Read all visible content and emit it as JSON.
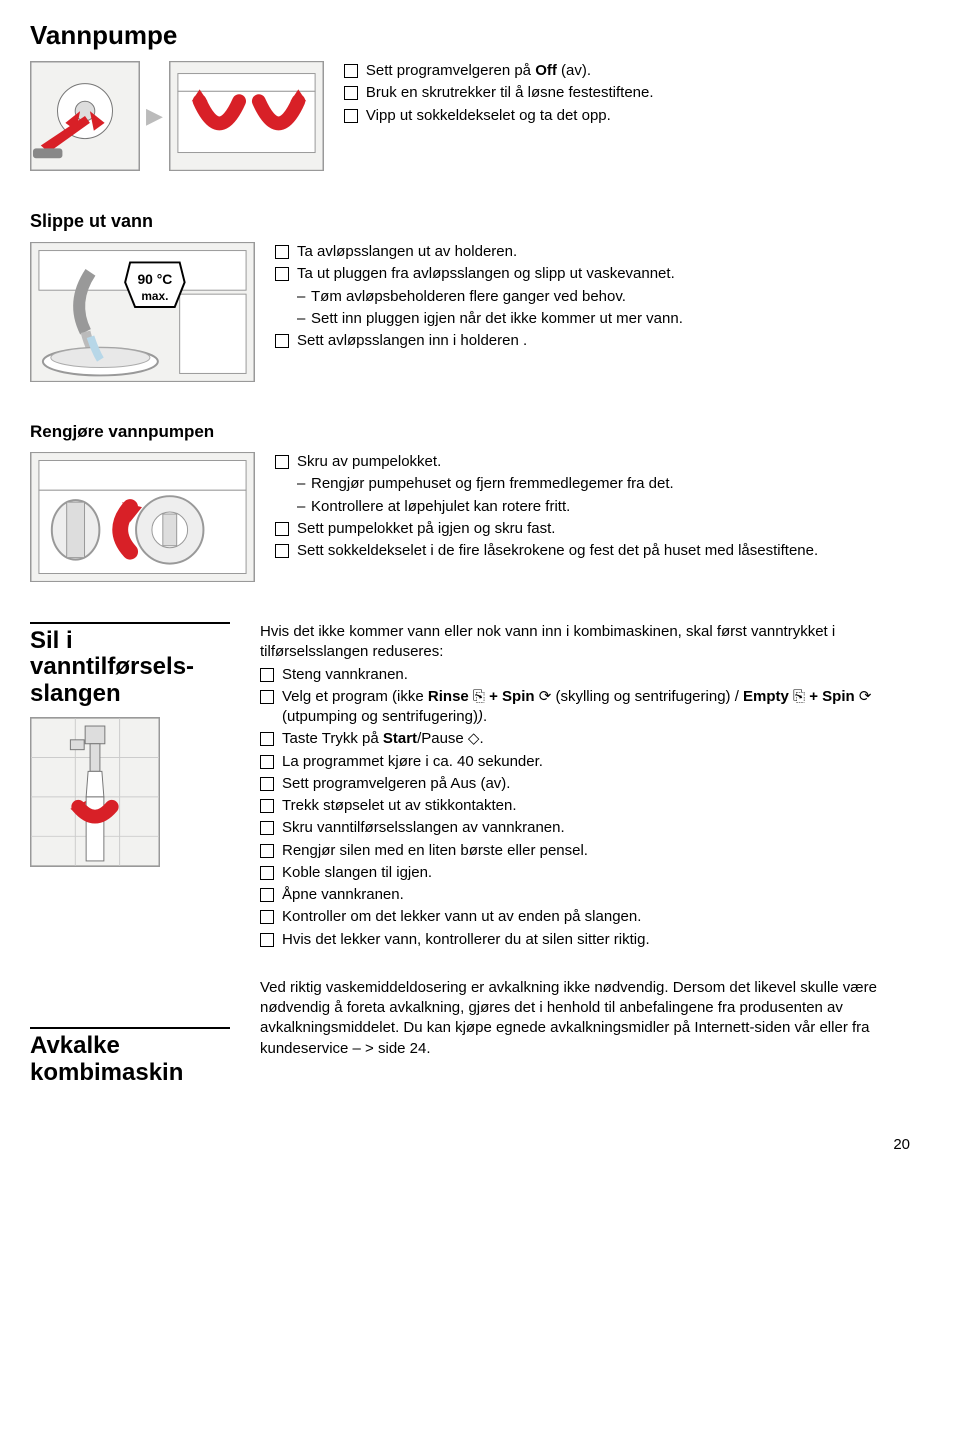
{
  "title": "Vannpumpe",
  "section1": {
    "items": [
      "Sett programvelgeren på <b>Off</b> (av).",
      "Bruk en skrutrekker til å løsne festestiftene.",
      "Vipp ut sokkeldekselet og ta det opp."
    ]
  },
  "section2": {
    "heading": "Slippe ut vann",
    "items_a": [
      "Ta avløpsslangen ut av holderen."
    ],
    "items_b": [
      "Ta ut pluggen fra avløpsslangen og slipp ut vaskevannet."
    ],
    "sub_b": [
      "Tøm avløpsbeholderen flere ganger ved behov.",
      "Sett inn pluggen igjen når det ikke kommer ut mer vann."
    ],
    "items_c": [
      "Sett avløpsslangen inn i holderen ."
    ]
  },
  "section3": {
    "heading": "Rengjøre vannpumpen",
    "items_a": [
      "Skru av pumpelokket."
    ],
    "sub_a": [
      "Rengjør pumpehuset og fjern fremmedlegemer fra det.",
      "Kontrollere at løpehjulet kan rotere fritt."
    ],
    "items_b": [
      "Sett pumpelokket på igjen og skru fast."
    ],
    "items_c": [
      "Sett sokkeldekselet i de fire låsekrokene og fest det på huset med låsestiftene."
    ]
  },
  "section4": {
    "left_label_1a": "Sil i vanntilførsels-",
    "left_label_1b": "slangen",
    "left_label_2a": "Avkalke",
    "left_label_2b": "kombimaskin",
    "intro": "Hvis det ikke kommer vann eller nok vann inn i kombimaskinen, skal først vanntrykket i tilførselsslangen reduseres:",
    "items": [
      "Steng vannkranen.",
      "Velg et program (ikke <b>Rinse</b> ⎘ <b>+ Spin</b> ⟳ (skylling og sentrifugering) / <b>Empty</b> ⎘ <b>+ Spin</b> ⟳ (utpumping og sentrifugering)<i>)</i>.",
      "Taste Trykk på <b>Start</b>/Pause ◇.",
      "La programmet kjøre i ca. 40 sekunder.",
      "Sett programvelgeren på Aus (av).",
      "Trekk støpselet ut av stikkontakten.",
      "Skru vanntilførselsslangen av vannkranen.",
      "Rengjør silen med en liten børste eller pensel.",
      "Koble slangen til igjen.",
      "Åpne vannkranen.",
      "Kontroller om det lekker vann ut av enden på slangen.",
      "Hvis det lekker vann, kontrollerer du at silen sitter riktig."
    ],
    "para2": "Ved riktig vaskemiddeldosering er avkalkning ikke nødvendig. Dersom det likevel skulle være nødvendig å foreta avkalkning, gjøres det i henhold til anbefalingene fra produsenten av avkalkningsmiddelet. Du kan kjøpe egnede avkalkningsmidler på Internett-siden vår eller fra kundeservice – > side 24."
  },
  "page_number": "20",
  "colors": {
    "accent_red": "#d82027",
    "illus_border": "#9a9a9a",
    "illus_bg": "#f2f2f0",
    "arrow_grey": "#bdbdbd"
  }
}
